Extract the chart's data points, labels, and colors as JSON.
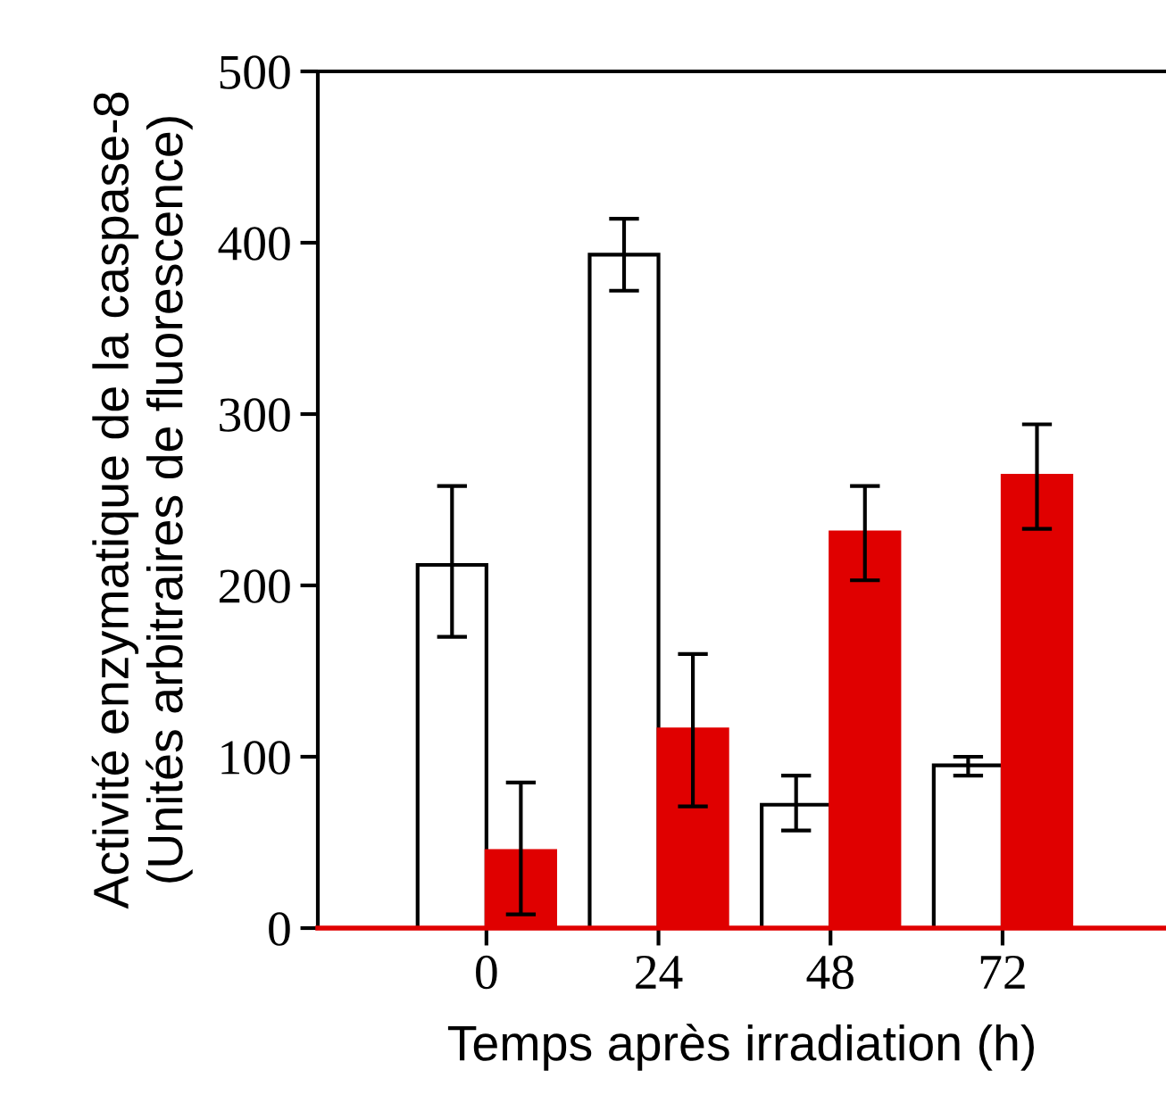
{
  "chart_data": {
    "type": "bar",
    "xlabel": "Temps après irradiation (h)",
    "ylabel": "Activité enzymatique de la caspase-8\n(Unités arbitraires de fluorescence)",
    "categories": [
      "0",
      "24",
      "48",
      "72"
    ],
    "series": [
      {
        "color": "#ffffff",
        "values": [
          212,
          393,
          72,
          95
        ],
        "errors": [
          [
            170,
            258
          ],
          [
            372,
            414
          ],
          [
            57,
            89
          ],
          [
            89,
            100
          ]
        ]
      },
      {
        "color": "#e00000",
        "values": [
          45,
          116,
          231,
          264
        ],
        "errors": [
          [
            8,
            85
          ],
          [
            71,
            160
          ],
          [
            203,
            258
          ],
          [
            233,
            294
          ]
        ]
      }
    ],
    "ylim": [
      0,
      500
    ],
    "yticks": [
      0,
      100,
      200,
      300,
      400,
      500
    ],
    "grid": false,
    "legend": false
  }
}
